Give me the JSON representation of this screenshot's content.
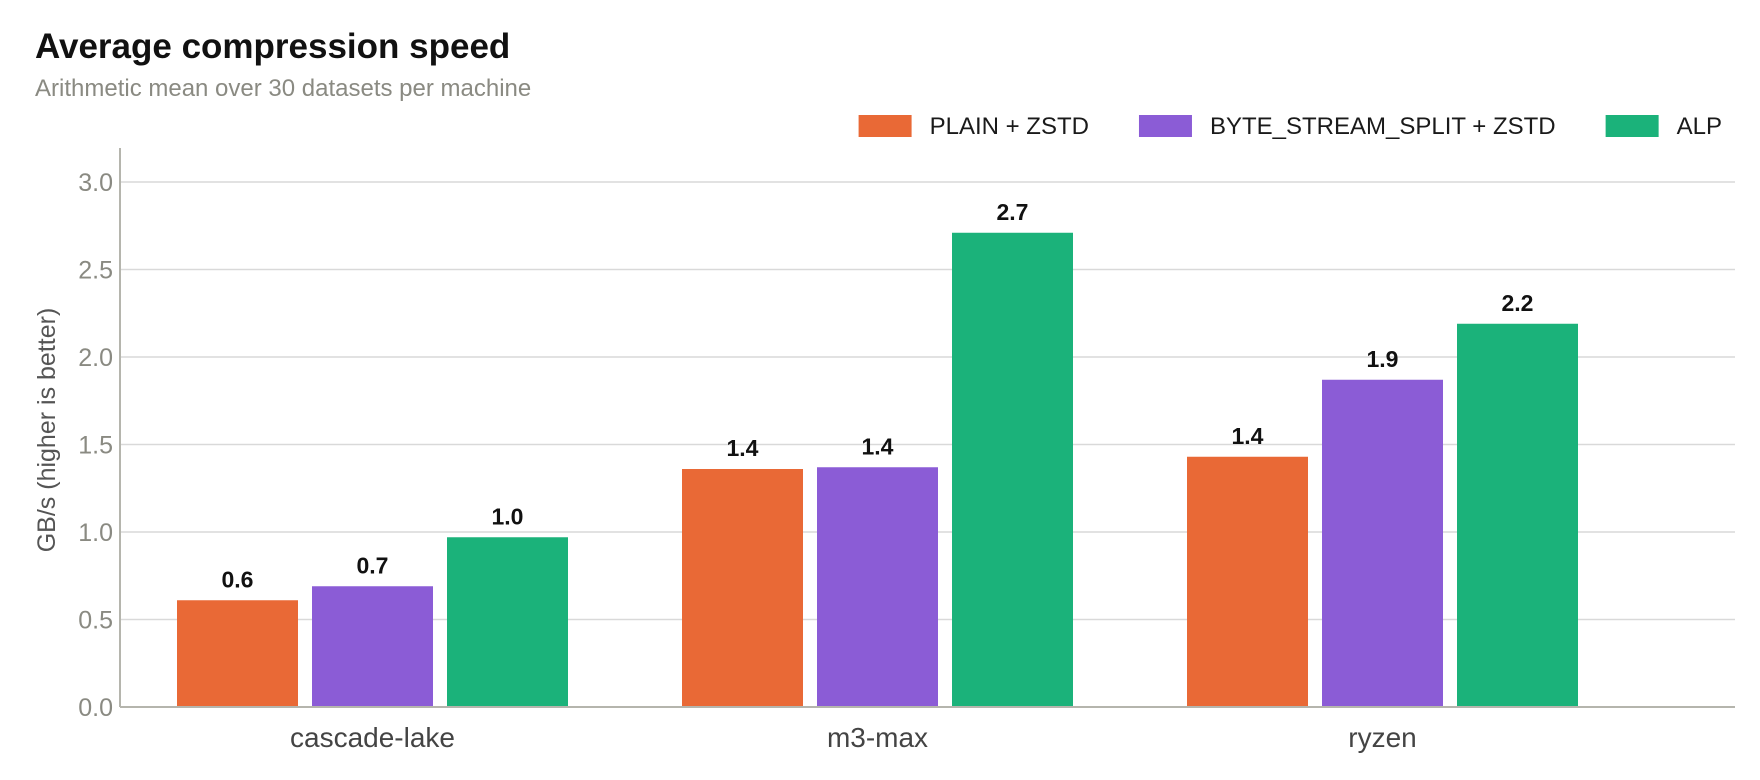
{
  "chart_data": {
    "type": "bar",
    "title": "Average compression speed",
    "subtitle": "Arithmetic mean over 30 datasets per machine",
    "ylabel": "GB/s (higher is better)",
    "xlabel": "",
    "categories": [
      "cascade-lake",
      "m3-max",
      "ryzen"
    ],
    "series": [
      {
        "name": "PLAIN + ZSTD",
        "color": "#e96936",
        "values": [
          0.61,
          1.36,
          1.43
        ],
        "labels": [
          "0.6",
          "1.4",
          "1.4"
        ]
      },
      {
        "name": "BYTE_STREAM_SPLIT + ZSTD",
        "color": "#8b5cd6",
        "values": [
          0.69,
          1.37,
          1.87
        ],
        "labels": [
          "0.7",
          "1.4",
          "1.9"
        ]
      },
      {
        "name": "ALP",
        "color": "#1bb27a",
        "values": [
          0.97,
          2.71,
          2.19
        ],
        "labels": [
          "1.0",
          "2.7",
          "2.2"
        ]
      }
    ],
    "ylim": [
      0,
      3.2
    ],
    "yticks": [
      "0.0",
      "0.5",
      "1.0",
      "1.5",
      "2.0",
      "2.5",
      "3.0"
    ],
    "grid": true,
    "legend_position": "top-right"
  }
}
